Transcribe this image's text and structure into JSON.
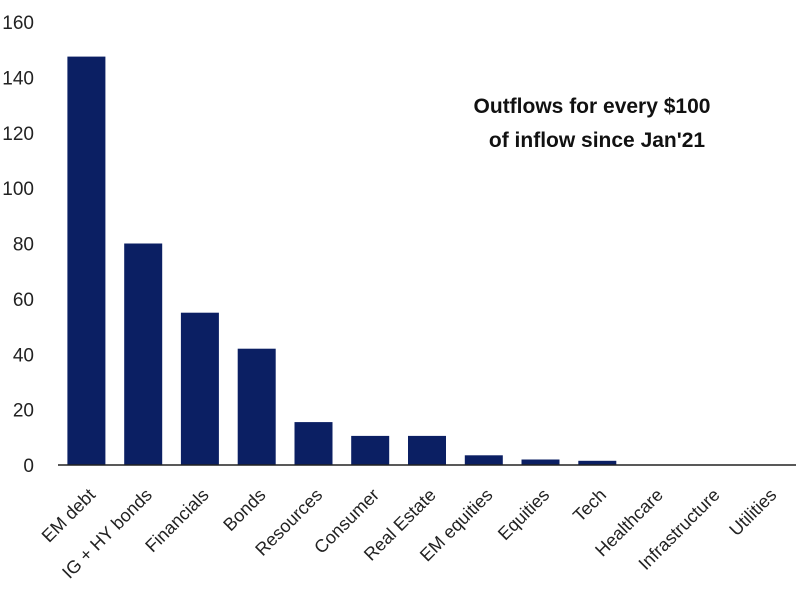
{
  "chart_data": {
    "type": "bar",
    "title_lines": [
      "Outflows for every $100",
      "of inflow since Jan'21"
    ],
    "categories": [
      "EM debt",
      "IG + HY bonds",
      "Financials",
      "Bonds",
      "Resources",
      "Consumer",
      "Real Estate",
      "EM equities",
      "Equities",
      "Tech",
      "Healthcare",
      "Infrastructure",
      "Utilities"
    ],
    "values": [
      147.5,
      80,
      55,
      42,
      15.5,
      10.5,
      10.5,
      3.5,
      2,
      1.5,
      0,
      0,
      0
    ],
    "ylim": [
      0,
      160
    ],
    "yticks": [
      0,
      20,
      40,
      60,
      80,
      100,
      120,
      140,
      160
    ],
    "xlabel": "",
    "ylabel": "",
    "grid": false,
    "legend": "none",
    "bar_color": "#0b1f63",
    "axis_color": "#222222"
  }
}
